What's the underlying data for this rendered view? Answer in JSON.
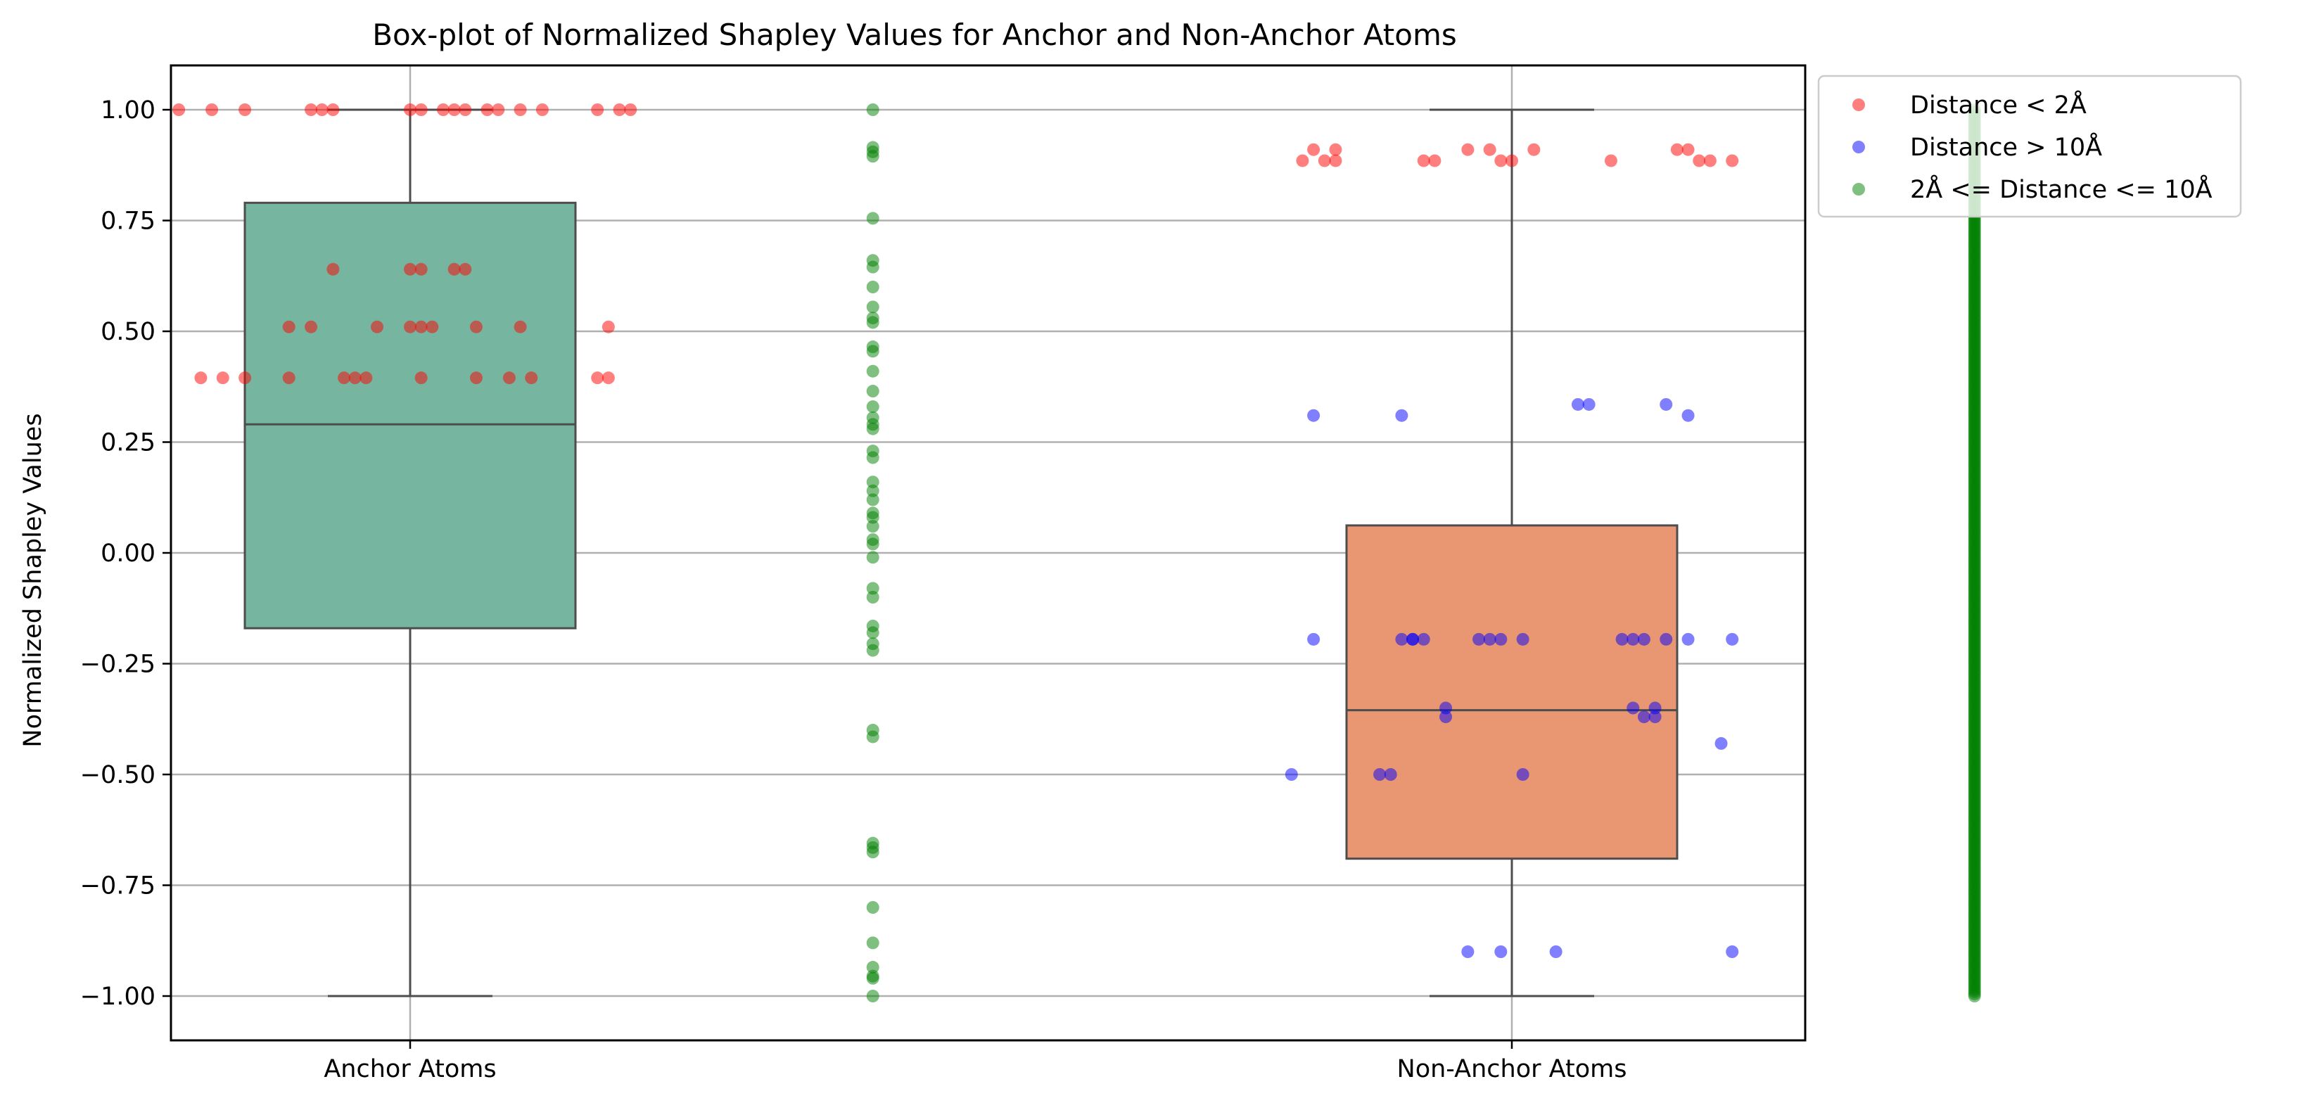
{
  "chart_data": {
    "type": "box",
    "title": "Box-plot of Normalized Shapley Values for Anchor and Non-Anchor Atoms",
    "xlabel": "",
    "ylabel": "Normalized Shapley Values",
    "ylim": [
      -1.1,
      1.1
    ],
    "yticks": [
      1.0,
      0.75,
      0.5,
      0.25,
      0.0,
      -0.25,
      -0.5,
      -0.75,
      -1.0
    ],
    "ytick_labels": [
      "1.00",
      "0.75",
      "0.50",
      "0.25",
      "0.00",
      "−0.25",
      "−0.50",
      "−0.75",
      "−1.00"
    ],
    "categories": [
      "Anchor Atoms",
      "Non-Anchor Atoms"
    ],
    "grid": true,
    "legend_position": "outside-top-right",
    "boxes": [
      {
        "category": "Anchor Atoms",
        "whisker_low": -1.0,
        "q1": -0.17,
        "median": 0.29,
        "q3": 0.79,
        "whisker_high": 1.0,
        "color": "#76b6a0"
      },
      {
        "category": "Non-Anchor Atoms",
        "whisker_low": -1.0,
        "q1": -0.69,
        "median": -0.355,
        "q3": 0.062,
        "whisker_high": 1.0,
        "color": "#e99672"
      }
    ],
    "series": [
      {
        "name": "Distance < 2Å",
        "color": "#ff0000",
        "points": [
          [
            0,
            1.0,
            -0.21
          ],
          [
            0,
            1.0,
            -0.18
          ],
          [
            0,
            1.0,
            -0.15
          ],
          [
            0,
            1.0,
            -0.09
          ],
          [
            0,
            1.0,
            -0.08
          ],
          [
            0,
            1.0,
            -0.07
          ],
          [
            0,
            1.0,
            0.0
          ],
          [
            0,
            1.0,
            0.01
          ],
          [
            0,
            1.0,
            0.03
          ],
          [
            0,
            1.0,
            0.04
          ],
          [
            0,
            1.0,
            0.05
          ],
          [
            0,
            1.0,
            0.07
          ],
          [
            0,
            1.0,
            0.08
          ],
          [
            0,
            1.0,
            0.1
          ],
          [
            0,
            1.0,
            0.12
          ],
          [
            0,
            1.0,
            0.17
          ],
          [
            0,
            1.0,
            0.19
          ],
          [
            0,
            1.0,
            0.2
          ],
          [
            0,
            0.64,
            -0.07
          ],
          [
            0,
            0.64,
            0.0
          ],
          [
            0,
            0.64,
            0.01
          ],
          [
            0,
            0.64,
            0.04
          ],
          [
            0,
            0.64,
            0.05
          ],
          [
            0,
            0.51,
            -0.11
          ],
          [
            0,
            0.51,
            -0.09
          ],
          [
            0,
            0.51,
            -0.03
          ],
          [
            0,
            0.51,
            0.0
          ],
          [
            0,
            0.51,
            0.01
          ],
          [
            0,
            0.51,
            0.02
          ],
          [
            0,
            0.51,
            0.06
          ],
          [
            0,
            0.51,
            0.1
          ],
          [
            0,
            0.51,
            0.18
          ],
          [
            0,
            0.395,
            -0.19
          ],
          [
            0,
            0.395,
            -0.17
          ],
          [
            0,
            0.395,
            -0.15
          ],
          [
            0,
            0.395,
            -0.11
          ],
          [
            0,
            0.395,
            -0.06
          ],
          [
            0,
            0.395,
            -0.05
          ],
          [
            0,
            0.395,
            -0.04
          ],
          [
            0,
            0.395,
            0.01
          ],
          [
            0,
            0.395,
            0.06
          ],
          [
            0,
            0.395,
            0.09
          ],
          [
            0,
            0.395,
            0.11
          ],
          [
            0,
            0.395,
            0.17
          ],
          [
            0,
            0.395,
            0.18
          ],
          [
            1,
            0.91,
            -0.18
          ],
          [
            1,
            0.91,
            -0.16
          ],
          [
            1,
            0.91,
            -0.04
          ],
          [
            1,
            0.91,
            -0.02
          ],
          [
            1,
            0.91,
            0.02
          ],
          [
            1,
            0.91,
            0.16
          ],
          [
            1,
            0.91,
            0.15
          ],
          [
            1,
            0.885,
            -0.19
          ],
          [
            1,
            0.885,
            -0.17
          ],
          [
            1,
            0.885,
            -0.16
          ],
          [
            1,
            0.885,
            -0.08
          ],
          [
            1,
            0.885,
            -0.07
          ],
          [
            1,
            0.885,
            -0.01
          ],
          [
            1,
            0.885,
            0.0
          ],
          [
            1,
            0.885,
            0.09
          ],
          [
            1,
            0.885,
            0.17
          ],
          [
            1,
            0.885,
            0.18
          ],
          [
            1,
            0.885,
            0.2
          ]
        ]
      },
      {
        "name": "Distance > 10Å",
        "color": "#0000ff",
        "points": [
          [
            1,
            0.335,
            0.06
          ],
          [
            1,
            0.335,
            0.07
          ],
          [
            1,
            0.335,
            0.14
          ],
          [
            1,
            0.31,
            -0.18
          ],
          [
            1,
            0.31,
            -0.1
          ],
          [
            1,
            0.31,
            0.16
          ],
          [
            1,
            -0.195,
            -0.18
          ],
          [
            1,
            -0.195,
            -0.1
          ],
          [
            1,
            -0.195,
            -0.09
          ],
          [
            1,
            -0.195,
            -0.09
          ],
          [
            1,
            -0.195,
            -0.08
          ],
          [
            1,
            -0.195,
            -0.03
          ],
          [
            1,
            -0.195,
            -0.02
          ],
          [
            1,
            -0.195,
            -0.01
          ],
          [
            1,
            -0.195,
            0.01
          ],
          [
            1,
            -0.195,
            0.1
          ],
          [
            1,
            -0.195,
            0.11
          ],
          [
            1,
            -0.195,
            0.12
          ],
          [
            1,
            -0.195,
            0.14
          ],
          [
            1,
            -0.195,
            0.16
          ],
          [
            1,
            -0.195,
            0.2
          ],
          [
            1,
            -0.35,
            -0.06
          ],
          [
            1,
            -0.35,
            0.11
          ],
          [
            1,
            -0.35,
            0.13
          ],
          [
            1,
            -0.37,
            -0.06
          ],
          [
            1,
            -0.37,
            0.12
          ],
          [
            1,
            -0.37,
            0.13
          ],
          [
            1,
            -0.43,
            0.19
          ],
          [
            1,
            -0.5,
            -0.2
          ],
          [
            1,
            -0.5,
            -0.12
          ],
          [
            1,
            -0.5,
            -0.11
          ],
          [
            1,
            -0.5,
            0.01
          ],
          [
            1,
            -0.9,
            -0.04
          ],
          [
            1,
            -0.9,
            -0.01
          ],
          [
            1,
            -0.9,
            0.04
          ],
          [
            1,
            -0.9,
            0.2
          ]
        ]
      },
      {
        "name": "2Å <= Distance <= 10Å",
        "color": "#008000",
        "points": [
          [
            0,
            1.0,
            0.42
          ],
          [
            0,
            0.915,
            0.42
          ],
          [
            0,
            0.905,
            0.42
          ],
          [
            0,
            0.895,
            0.42
          ],
          [
            0,
            0.755,
            0.42
          ],
          [
            0,
            0.66,
            0.42
          ],
          [
            0,
            0.645,
            0.42
          ],
          [
            0,
            0.6,
            0.42
          ],
          [
            0,
            0.555,
            0.42
          ],
          [
            0,
            0.53,
            0.42
          ],
          [
            0,
            0.52,
            0.42
          ],
          [
            0,
            0.465,
            0.42
          ],
          [
            0,
            0.455,
            0.42
          ],
          [
            0,
            0.41,
            0.42
          ],
          [
            0,
            0.365,
            0.42
          ],
          [
            0,
            0.33,
            0.42
          ],
          [
            0,
            0.305,
            0.42
          ],
          [
            0,
            0.29,
            0.42
          ],
          [
            0,
            0.28,
            0.42
          ],
          [
            0,
            0.23,
            0.42
          ],
          [
            0,
            0.215,
            0.42
          ],
          [
            0,
            0.16,
            0.42
          ],
          [
            0,
            0.14,
            0.42
          ],
          [
            0,
            0.12,
            0.42
          ],
          [
            0,
            0.09,
            0.42
          ],
          [
            0,
            0.08,
            0.42
          ],
          [
            0,
            0.06,
            0.42
          ],
          [
            0,
            0.03,
            0.42
          ],
          [
            0,
            0.02,
            0.42
          ],
          [
            0,
            -0.01,
            0.42
          ],
          [
            0,
            -0.08,
            0.42
          ],
          [
            0,
            -0.1,
            0.42
          ],
          [
            0,
            -0.165,
            0.42
          ],
          [
            0,
            -0.18,
            0.42
          ],
          [
            0,
            -0.205,
            0.42
          ],
          [
            0,
            -0.22,
            0.42
          ],
          [
            0,
            -0.4,
            0.42
          ],
          [
            0,
            -0.415,
            0.42
          ],
          [
            0,
            -0.655,
            0.42
          ],
          [
            0,
            -0.665,
            0.42
          ],
          [
            0,
            -0.675,
            0.42
          ],
          [
            0,
            -0.8,
            0.42
          ],
          [
            0,
            -0.88,
            0.42
          ],
          [
            0,
            -0.935,
            0.42
          ],
          [
            0,
            -0.955,
            0.42
          ],
          [
            0,
            -0.96,
            0.42
          ],
          [
            0,
            -1.0,
            0.42
          ]
        ],
        "dense_column": {
          "category": 1,
          "offset": 0.42,
          "from": -1.0,
          "to": 1.0
        }
      }
    ],
    "legend": [
      "Distance < 2Å",
      "Distance > 10Å",
      "2Å <= Distance <= 10Å"
    ]
  }
}
